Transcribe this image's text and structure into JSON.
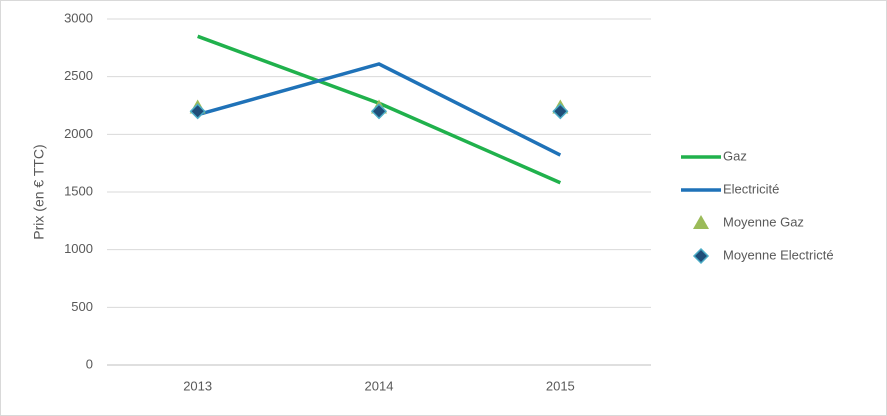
{
  "chart_data": {
    "type": "line",
    "y_label": "Prix (en € TTC)",
    "categories": [
      "2013",
      "2014",
      "2015"
    ],
    "series": [
      {
        "name": "Gaz",
        "color": "#20b14c",
        "line": true,
        "marker": null,
        "values": [
          2850,
          2270,
          1580
        ]
      },
      {
        "name": "Electricité",
        "color": "#1f72b8",
        "line": true,
        "marker": null,
        "values": [
          2170,
          2610,
          1820
        ]
      },
      {
        "name": "Moyenne Gaz",
        "color": "#9bbb59",
        "line": false,
        "marker": "triangle",
        "values": [
          2233,
          2233,
          2233
        ]
      },
      {
        "name": "Moyenne Electricté",
        "color": "#1f4e79",
        "line": false,
        "marker": "diamond",
        "values": [
          2200,
          2200,
          2200
        ]
      }
    ],
    "ylim": [
      0,
      3000
    ],
    "yticks": [
      0,
      500,
      1000,
      1500,
      2000,
      2500,
      3000
    ],
    "grid": true,
    "legend": "right"
  }
}
